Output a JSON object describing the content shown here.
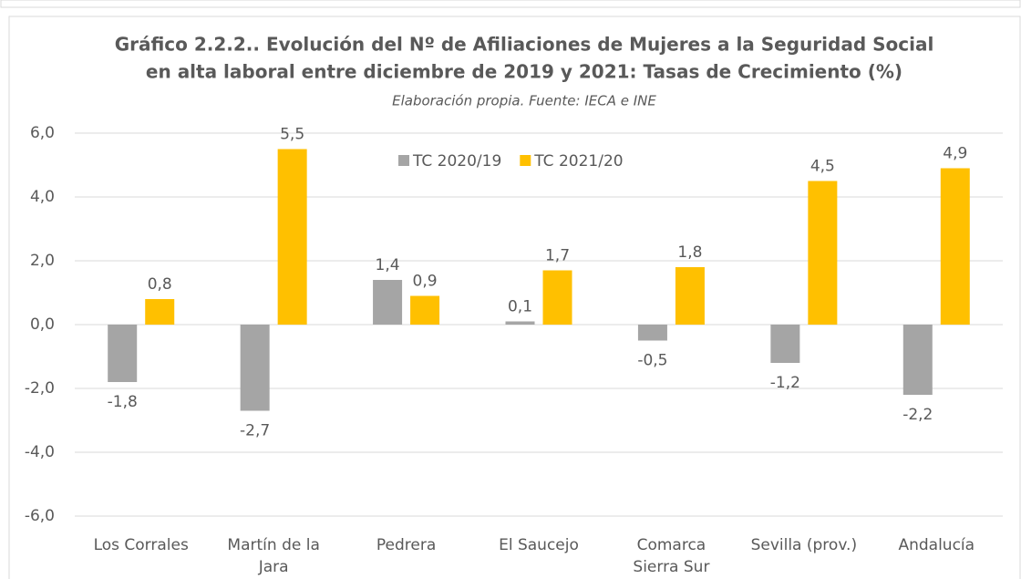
{
  "chart_data": {
    "type": "bar",
    "title": "Gráfico 2.2.2.. Evolución del Nº de Afiliaciones de Mujeres a la Seguridad Social",
    "title_line2": "en alta laboral entre diciembre de 2019 y 2021: Tasas de Crecimiento (%)",
    "subtitle": "Elaboración propia. Fuente: IECA e INE",
    "categories": [
      "Los Corrales",
      "Martín de la Jara",
      "Pedrera",
      "El Saucejo",
      "Comarca Sierra Sur",
      "Sevilla (prov.)",
      "Andalucía"
    ],
    "series": [
      {
        "name": "TC 2020/19",
        "color": "#a5a5a5",
        "values": [
          -1.8,
          -2.7,
          1.4,
          0.1,
          -0.5,
          -1.2,
          -2.2
        ],
        "value_labels": [
          "-1,8",
          "-2,7",
          "1,4",
          "0,1",
          "-0,5",
          "-1,2",
          "-2,2"
        ]
      },
      {
        "name": "TC 2021/20",
        "color": "#ffc000",
        "values": [
          0.8,
          5.5,
          0.9,
          1.7,
          1.8,
          4.5,
          4.9
        ],
        "value_labels": [
          "0,8",
          "5,5",
          "0,9",
          "1,7",
          "1,8",
          "4,5",
          "4,9"
        ]
      }
    ],
    "ylim": [
      -6,
      6
    ],
    "yticks": [
      {
        "value": -6,
        "label": "-6,0"
      },
      {
        "value": -4,
        "label": "-4,0"
      },
      {
        "value": -2,
        "label": "-2,0"
      },
      {
        "value": 0,
        "label": "0,0"
      },
      {
        "value": 2,
        "label": "2,0"
      },
      {
        "value": 4,
        "label": "4,0"
      },
      {
        "value": 6,
        "label": "6,0"
      }
    ],
    "grid": true,
    "legend": "top"
  }
}
